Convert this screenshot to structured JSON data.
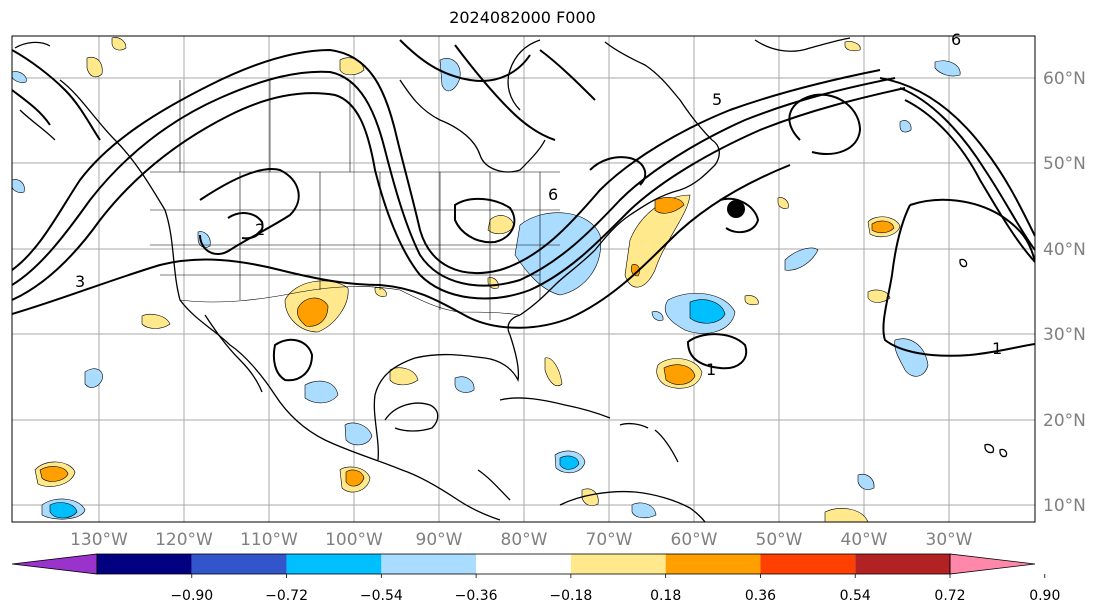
{
  "title": "2024082000 F000",
  "lon_labels": [
    "130°W",
    "120°W",
    "110°W",
    "100°W",
    "90°W",
    "80°W",
    "70°W",
    "60°W",
    "50°W",
    "40°W",
    "30°W"
  ],
  "lat_labels": [
    "60°N",
    "50°N",
    "40°N",
    "30°N",
    "20°N",
    "10°N"
  ],
  "colorbar": {
    "colors": [
      "#9933cc",
      "#000080",
      "#3355cc",
      "#00bfff",
      "#aadcff",
      "#ffffff",
      "#ffe98c",
      "#ffa000",
      "#ff4000",
      "#b22222",
      "#ff88aa"
    ],
    "tick_labels": [
      "−0.90",
      "−0.72",
      "−0.54",
      "−0.36",
      "−0.18",
      "0.18",
      "0.36",
      "0.54",
      "0.72",
      "0.90"
    ]
  },
  "contour_labels": [
    "1",
    "1",
    "2",
    "3",
    "6",
    "5",
    "6"
  ]
}
